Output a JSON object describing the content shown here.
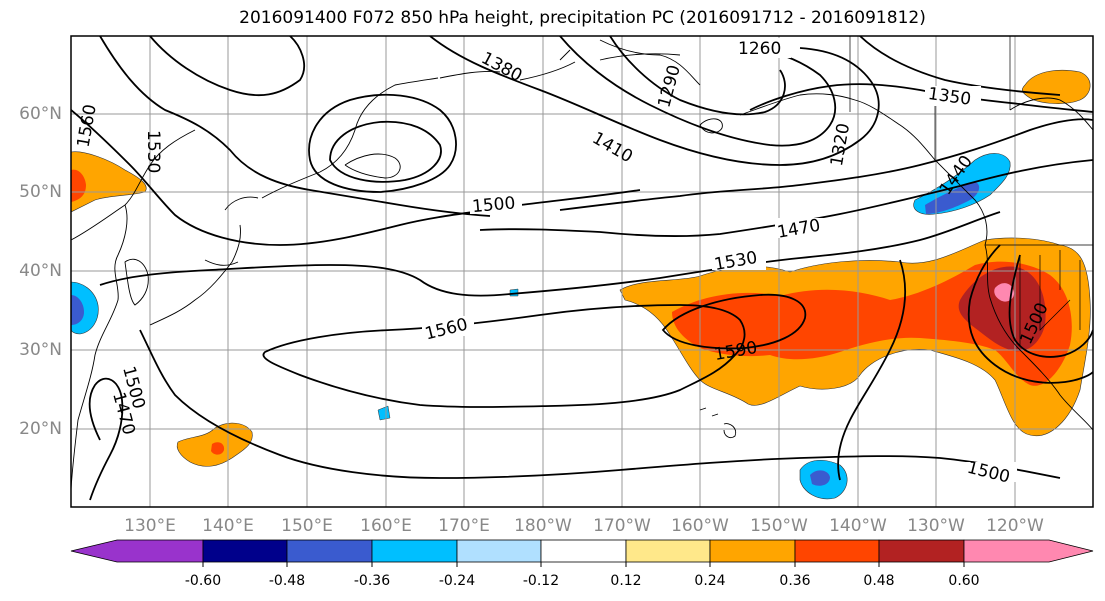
{
  "title": "2016091400 F072 850 hPa height, precipitation PC (2016091712 - 2016091812)",
  "lat_labels": [
    "60°N",
    "50°N",
    "40°N",
    "30°N",
    "20°N"
  ],
  "lon_labels": [
    "130°E",
    "140°E",
    "150°E",
    "160°E",
    "170°E",
    "180°W",
    "170°W",
    "160°W",
    "150°W",
    "140°W",
    "130°W",
    "120°W"
  ],
  "contour_labels": [
    "1260",
    "1380",
    "1290",
    "1350",
    "1410",
    "1320",
    "1500",
    "1470",
    "1530",
    "1560",
    "1590",
    "1500",
    "1500",
    "1470",
    "1500",
    "1530",
    "1560",
    "1440"
  ],
  "colorbar": {
    "labels": [
      "-0.60",
      "-0.48",
      "-0.36",
      "-0.24",
      "-0.12",
      "0.12",
      "0.24",
      "0.36",
      "0.48",
      "0.60"
    ],
    "colors": [
      "#9933cc",
      "#00008b",
      "#3a5bcf",
      "#00bfff",
      "#b0e0ff",
      "#ffffff",
      "#ffe88a",
      "#ffa500",
      "#ff4500",
      "#b22222",
      "#ff88b0"
    ]
  }
}
